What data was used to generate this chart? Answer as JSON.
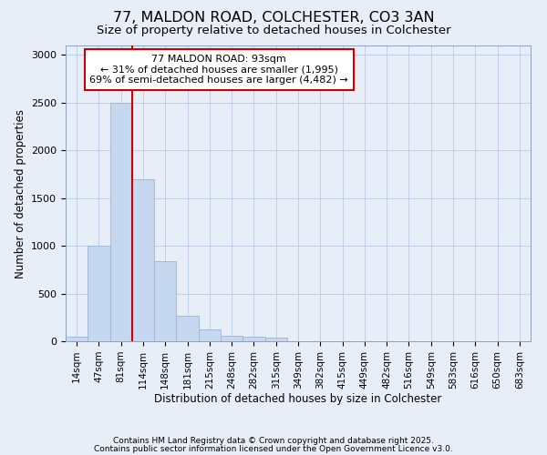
{
  "title1": "77, MALDON ROAD, COLCHESTER, CO3 3AN",
  "title2": "Size of property relative to detached houses in Colchester",
  "xlabel": "Distribution of detached houses by size in Colchester",
  "ylabel": "Number of detached properties",
  "categories": [
    "14sqm",
    "47sqm",
    "81sqm",
    "114sqm",
    "148sqm",
    "181sqm",
    "215sqm",
    "248sqm",
    "282sqm",
    "315sqm",
    "349sqm",
    "382sqm",
    "415sqm",
    "449sqm",
    "482sqm",
    "516sqm",
    "549sqm",
    "583sqm",
    "616sqm",
    "650sqm",
    "683sqm"
  ],
  "values": [
    50,
    1000,
    2500,
    1700,
    840,
    270,
    125,
    55,
    45,
    35,
    0,
    0,
    0,
    0,
    0,
    0,
    0,
    0,
    0,
    0,
    0
  ],
  "bar_color": "#c5d8f0",
  "bar_edge_color": "#9ab4d4",
  "annotation_text": "77 MALDON ROAD: 93sqm\n← 31% of detached houses are smaller (1,995)\n69% of semi-detached houses are larger (4,482) →",
  "annotation_box_color": "#ffffff",
  "annotation_box_edge": "#cc0000",
  "vline_color": "#cc0000",
  "grid_color": "#c0d0e8",
  "background_color": "#e8eef8",
  "plot_bg_color": "#e8eef8",
  "ylim": [
    0,
    3100
  ],
  "yticks": [
    0,
    500,
    1000,
    1500,
    2000,
    2500,
    3000
  ],
  "footer1": "Contains HM Land Registry data © Crown copyright and database right 2025.",
  "footer2": "Contains public sector information licensed under the Open Government Licence v3.0."
}
